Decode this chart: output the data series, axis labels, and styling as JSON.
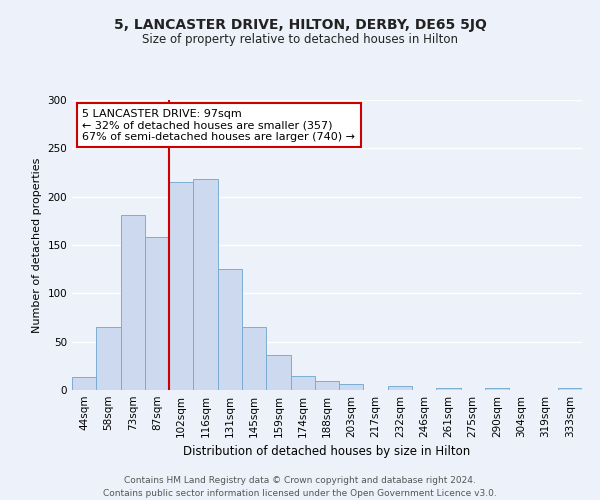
{
  "title": "5, LANCASTER DRIVE, HILTON, DERBY, DE65 5JQ",
  "subtitle": "Size of property relative to detached houses in Hilton",
  "xlabel": "Distribution of detached houses by size in Hilton",
  "ylabel": "Number of detached properties",
  "bar_labels": [
    "44sqm",
    "58sqm",
    "73sqm",
    "87sqm",
    "102sqm",
    "116sqm",
    "131sqm",
    "145sqm",
    "159sqm",
    "174sqm",
    "188sqm",
    "203sqm",
    "217sqm",
    "232sqm",
    "246sqm",
    "261sqm",
    "275sqm",
    "290sqm",
    "304sqm",
    "319sqm",
    "333sqm"
  ],
  "bar_values": [
    13,
    65,
    181,
    158,
    215,
    218,
    125,
    65,
    36,
    14,
    9,
    6,
    0,
    4,
    0,
    2,
    0,
    2,
    0,
    0,
    2
  ],
  "bar_color": "#ccd9ee",
  "bar_edge_color": "#7aadd4",
  "ylim": [
    0,
    300
  ],
  "yticks": [
    0,
    50,
    100,
    150,
    200,
    250,
    300
  ],
  "vline_x": 3.5,
  "vline_color": "#cc0000",
  "annotation_title": "5 LANCASTER DRIVE: 97sqm",
  "annotation_line1": "← 32% of detached houses are smaller (357)",
  "annotation_line2": "67% of semi-detached houses are larger (740) →",
  "annotation_box_color": "#cc0000",
  "footer_line1": "Contains HM Land Registry data © Crown copyright and database right 2024.",
  "footer_line2": "Contains public sector information licensed under the Open Government Licence v3.0.",
  "bg_color": "#edf2fa",
  "plot_bg_color": "#edf2fa",
  "grid_color": "#ffffff",
  "title_fontsize": 10,
  "subtitle_fontsize": 8.5,
  "ylabel_fontsize": 8,
  "xlabel_fontsize": 8.5,
  "tick_fontsize": 7.5,
  "annotation_fontsize": 8,
  "footer_fontsize": 6.5
}
